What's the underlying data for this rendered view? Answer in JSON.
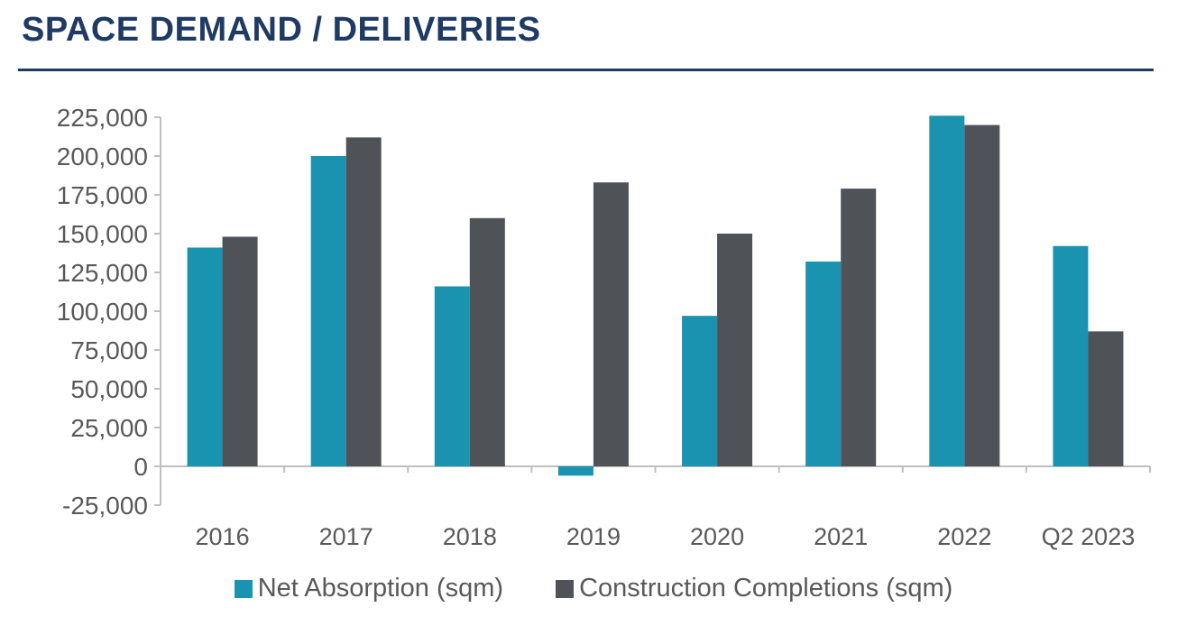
{
  "title": "SPACE DEMAND / DELIVERIES",
  "colors": {
    "title": "#1f3b63",
    "net_absorption": "#1a93b0",
    "construction_completions": "#4f5257",
    "axis_text": "#595959",
    "axis_line": "#bfbfbf"
  },
  "chart_data": {
    "type": "bar",
    "title": "SPACE DEMAND / DELIVERIES",
    "categories": [
      "2016",
      "2017",
      "2018",
      "2019",
      "2020",
      "2021",
      "2022",
      "Q2 2023"
    ],
    "series": [
      {
        "name": "Net Absorption (sqm)",
        "values": [
          141000,
          200000,
          116000,
          -6000,
          97000,
          132000,
          226000,
          142000
        ]
      },
      {
        "name": "Construction Completions (sqm)",
        "values": [
          148000,
          212000,
          160000,
          183000,
          150000,
          179000,
          220000,
          87000
        ]
      }
    ],
    "ylim": [
      -25000,
      225000
    ],
    "yticks": [
      -25000,
      0,
      25000,
      50000,
      75000,
      100000,
      125000,
      150000,
      175000,
      200000,
      225000
    ],
    "ytick_labels": [
      "-25,000",
      "0",
      "25,000",
      "50,000",
      "75,000",
      "100,000",
      "125,000",
      "150,000",
      "175,000",
      "200,000",
      "225,000"
    ],
    "grid": false,
    "legend": "bottom"
  }
}
